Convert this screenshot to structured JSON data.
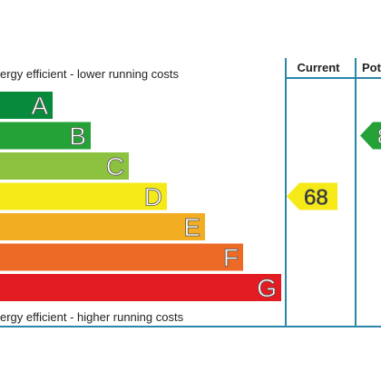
{
  "chart_data": {
    "type": "bar",
    "top_caption": "ergy efficient - lower running costs",
    "bottom_caption": "ergy efficient - higher running costs",
    "bands": [
      {
        "letter": "A",
        "color": "#078a3b"
      },
      {
        "letter": "B",
        "color": "#25a237"
      },
      {
        "letter": "C",
        "color": "#8dc240"
      },
      {
        "letter": "D",
        "color": "#f5ea18"
      },
      {
        "letter": "E",
        "color": "#f2ad23"
      },
      {
        "letter": "F",
        "color": "#ec6a25"
      },
      {
        "letter": "G",
        "color": "#e31b23"
      }
    ],
    "columns": {
      "current": {
        "label": "Current",
        "value": "68",
        "band": "D",
        "color": "#f5ea18"
      },
      "potential": {
        "label": "Pot",
        "value": "8",
        "band": "B",
        "color": "#25a237"
      }
    },
    "frame_color": "#2a86a8"
  }
}
